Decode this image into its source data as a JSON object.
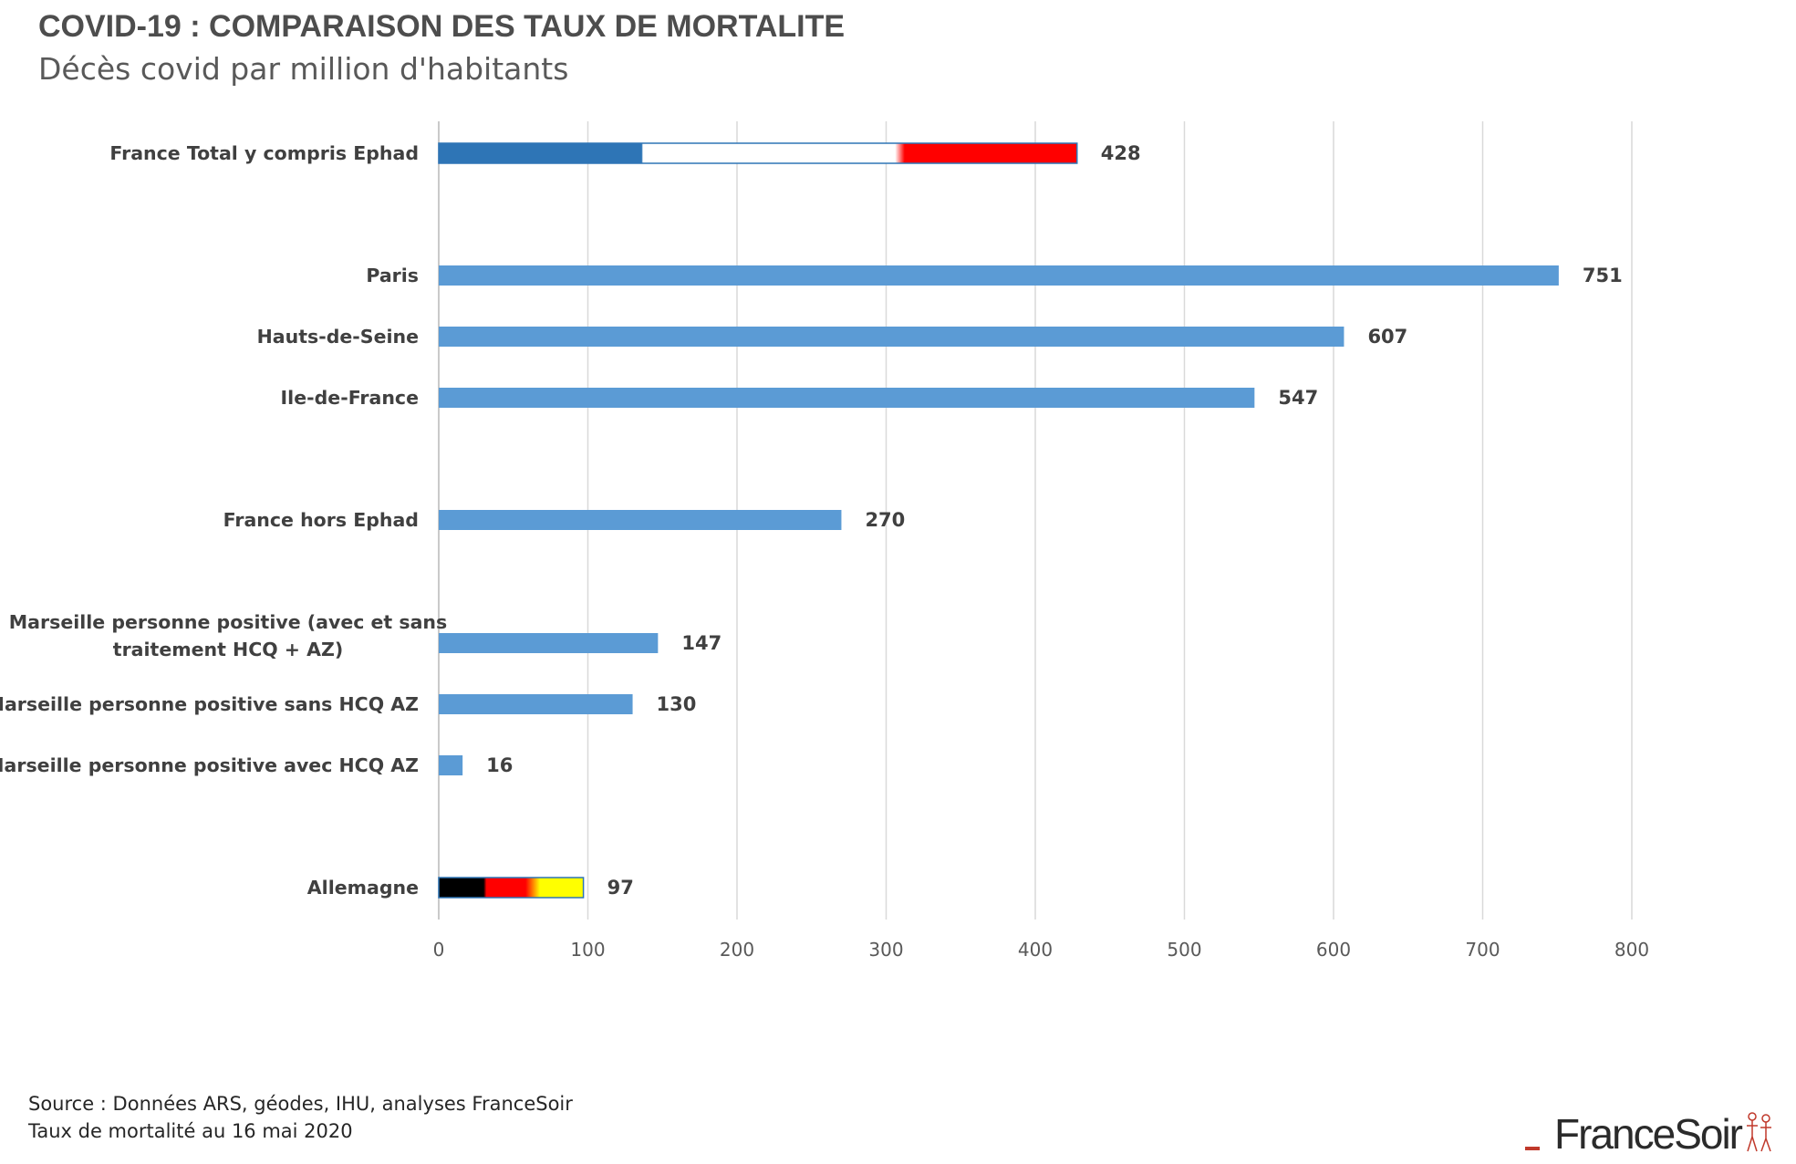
{
  "header": {
    "title": "COVID-19 : COMPARAISON DES TAUX DE MORTALITE",
    "subtitle": "Décès covid par million d'habitants"
  },
  "chart_data": {
    "type": "bar",
    "orientation": "horizontal",
    "title": "COVID-19 : COMPARAISON DES TAUX DE MORTALITE",
    "subtitle": "Décès covid par million d'habitants",
    "xlim": [
      0,
      800
    ],
    "xticks": [
      0,
      100,
      200,
      300,
      400,
      500,
      600,
      700,
      800
    ],
    "grid": true,
    "bar_color": "#5b9bd5",
    "categories": [
      [
        "France Total y compris Ephad"
      ],
      [
        "Paris"
      ],
      [
        "Hauts-de-Seine"
      ],
      [
        "Ile-de-France"
      ],
      [
        "France hors Ephad"
      ],
      [
        "Marseille personne positive (avec et sans",
        "traitement HCQ + AZ)"
      ],
      [
        "Marseille personne positive sans HCQ AZ"
      ],
      [
        "Marseille personne positive avec HCQ AZ"
      ],
      [
        "Allemagne"
      ]
    ],
    "values": [
      428,
      751,
      607,
      547,
      270,
      147,
      130,
      16,
      97
    ],
    "flag_fills": {
      "0": [
        "#2e75b6",
        "#ffffff",
        "#ff0000"
      ],
      "8": [
        "#000000",
        "#ff0000",
        "#ffff00"
      ]
    }
  },
  "footer": {
    "source": "Source : Données ARS, géodes, IHU, analyses FranceSoir",
    "date_note": "Taux de mortalité au 16 mai 2020"
  },
  "logo": {
    "text": "FranceSoir"
  }
}
